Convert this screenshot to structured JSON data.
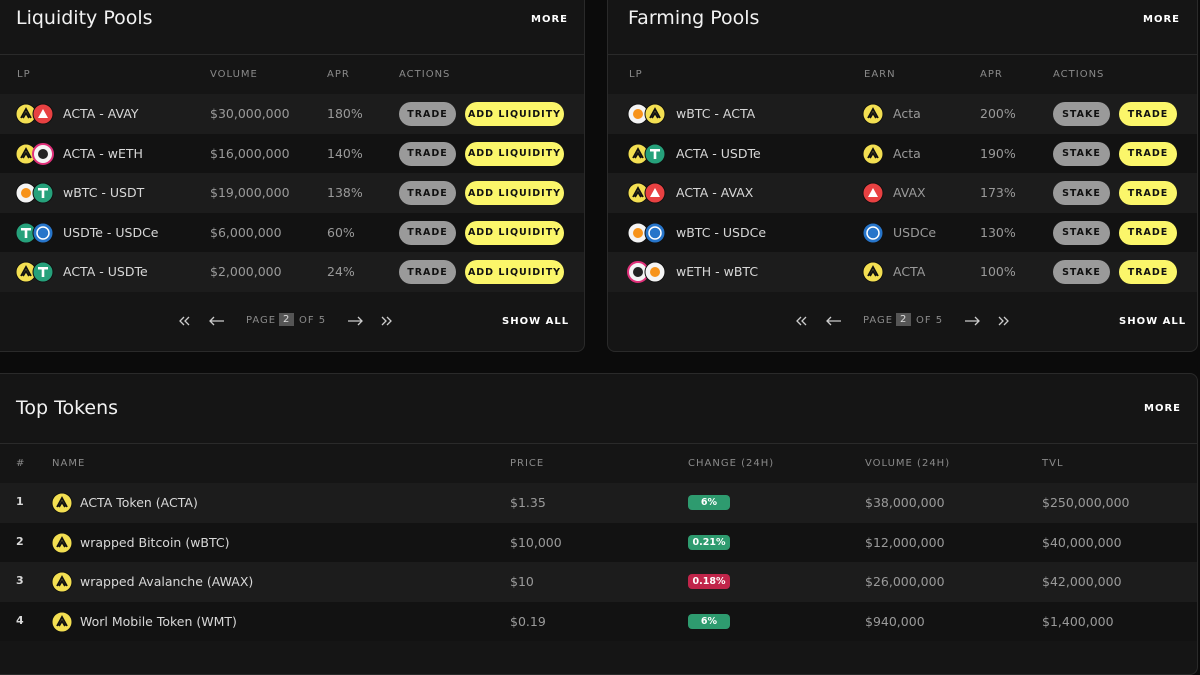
{
  "liquidity_pools": {
    "title": "Liquidity Pools",
    "more": "MORE",
    "headers": [
      "LP",
      "VOLUME",
      "APR",
      "ACTIONS"
    ],
    "rows": [
      {
        "pair": "ACTA - AVAY",
        "volume": "$30,000,000",
        "apr": "180%",
        "actions": [
          "TRADE",
          "ADD LIQUIDITY"
        ]
      },
      {
        "pair": "ACTA - wETH",
        "volume": "$16,000,000",
        "apr": "140%",
        "actions": [
          "TRADE",
          "ADD LIQUIDITY"
        ]
      },
      {
        "pair": "wBTC - USDT",
        "volume": "$19,000,000",
        "apr": "138%",
        "actions": [
          "TRADE",
          "ADD LIQUIDITY"
        ]
      },
      {
        "pair": "USDTe - USDCe",
        "volume": "$6,000,000",
        "apr": "60%",
        "actions": [
          "TRADE",
          "ADD LIQUIDITY"
        ]
      },
      {
        "pair": "ACTA - USDTe",
        "volume": "$2,000,000",
        "apr": "24%",
        "actions": [
          "TRADE",
          "ADD LIQUIDITY"
        ]
      }
    ],
    "pagination": {
      "page_label": "PAGE",
      "page": "2",
      "of": "OF 5",
      "show_all": "SHOW ALL"
    }
  },
  "farming_pools": {
    "title": "Farming Pools",
    "more": "MORE",
    "headers": [
      "LP",
      "EARN",
      "APR",
      "ACTIONS"
    ],
    "rows": [
      {
        "pair": "wBTC - ACTA",
        "earn": "Acta",
        "apr": "200%",
        "actions": [
          "STAKE",
          "TRADE"
        ]
      },
      {
        "pair": "ACTA - USDTe",
        "earn": "Acta",
        "apr": "190%",
        "actions": [
          "STAKE",
          "TRADE"
        ]
      },
      {
        "pair": "ACTA - AVAX",
        "earn": "AVAX",
        "apr": "173%",
        "actions": [
          "STAKE",
          "TRADE"
        ]
      },
      {
        "pair": "wBTC - USDCe",
        "earn": "USDCe",
        "apr": "130%",
        "actions": [
          "STAKE",
          "TRADE"
        ]
      },
      {
        "pair": "wETH - wBTC",
        "earn": "ACTA",
        "apr": "100%",
        "actions": [
          "STAKE",
          "TRADE"
        ]
      }
    ],
    "pagination": {
      "page_label": "PAGE",
      "page": "2",
      "of": "OF 5",
      "show_all": "SHOW ALL"
    }
  },
  "top_tokens": {
    "title": "Top Tokens",
    "more": "MORE",
    "headers": [
      "#",
      "NAME",
      "PRICE",
      "CHANGE (24H)",
      "VOLUME (24H)",
      "TVL"
    ],
    "rows": [
      {
        "rank": "1",
        "name": "ACTA Token (ACTA)",
        "price": "$1.35",
        "change": "6%",
        "change_color": "#2e9b6f",
        "volume": "$38,000,000",
        "tvl": "$250,000,000"
      },
      {
        "rank": "2",
        "name": "wrapped Bitcoin (wBTC)",
        "price": "$10,000",
        "change": "0.21%",
        "change_color": "#2e9b6f",
        "volume": "$12,000,000",
        "tvl": "$40,000,000"
      },
      {
        "rank": "3",
        "name": "wrapped Avalanche (AWAX)",
        "price": "$10",
        "change": "0.18%",
        "change_color": "#c0254a",
        "volume": "$26,000,000",
        "tvl": "$42,000,000"
      },
      {
        "rank": "4",
        "name": "Worl Mobile Token (WMT)",
        "price": "$0.19",
        "change": "6%",
        "change_color": "#2e9b6f",
        "volume": "$940,000",
        "tvl": "$1,400,000"
      }
    ]
  }
}
